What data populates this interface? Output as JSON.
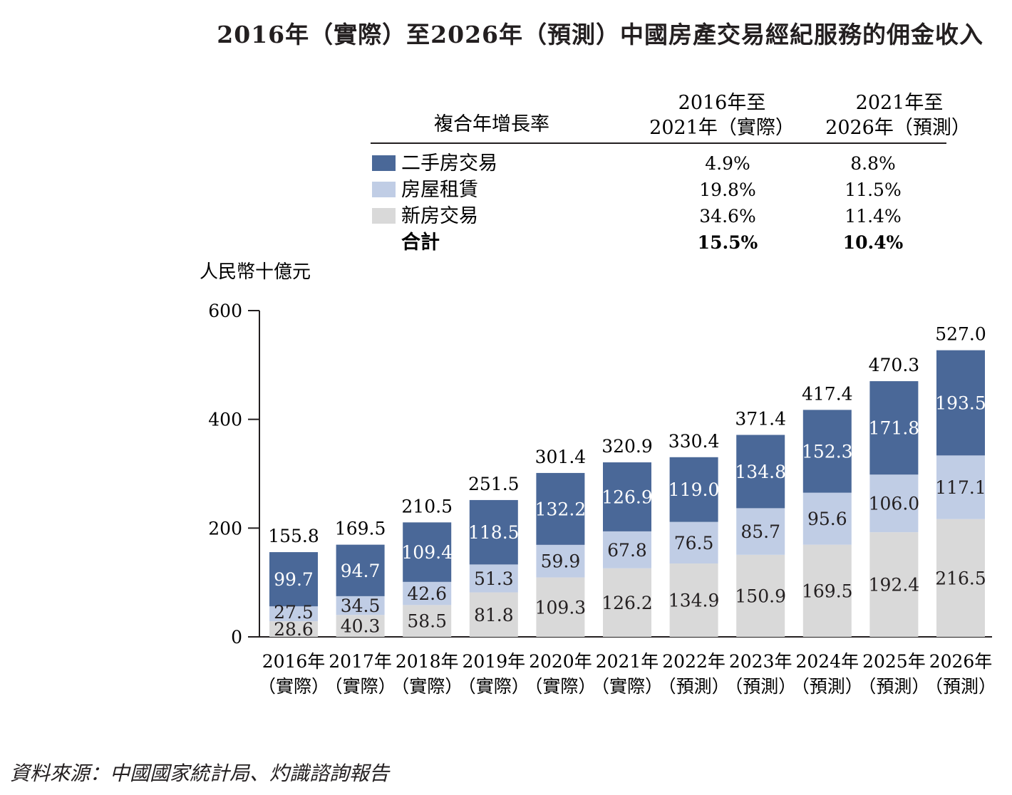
{
  "title": "2016年（實際）至2026年（預測）中國房產交易經紀服務的佣金收入",
  "source": "資料來源：中國國家統計局、灼識諮詢報告",
  "cagr_table": {
    "header_label": "複合年增長率",
    "col1": [
      "2016年至",
      "2021年（實際）"
    ],
    "col2": [
      "2021年至",
      "2026年（預測）"
    ],
    "rows": [
      {
        "name": "二手房交易",
        "swatch": "#4a6898",
        "v1": "4.9%",
        "v2": "8.8%"
      },
      {
        "name": "房屋租賃",
        "swatch": "#c0cde5",
        "v1": "19.8%",
        "v2": "11.5%"
      },
      {
        "name": "新房交易",
        "swatch": "#d9d9d9",
        "v1": "34.6%",
        "v2": "11.4%"
      },
      {
        "name": "合計",
        "swatch": "",
        "v1": "15.5%",
        "v2": "10.4%",
        "bold": true
      }
    ]
  },
  "chart_data": {
    "type": "bar",
    "stacked": true,
    "ylabel": "人民幣十億元",
    "ylim": [
      0,
      600
    ],
    "yticks": [
      0,
      200,
      400,
      600
    ],
    "categories": [
      [
        "2016年",
        "（實際）"
      ],
      [
        "2017年",
        "（實際）"
      ],
      [
        "2018年",
        "（實際）"
      ],
      [
        "2019年",
        "（實際）"
      ],
      [
        "2020年",
        "（實際）"
      ],
      [
        "2021年",
        "（實際）"
      ],
      [
        "2022年",
        "（預測）"
      ],
      [
        "2023年",
        "（預測）"
      ],
      [
        "2024年",
        "（預測）"
      ],
      [
        "2025年",
        "（預測）"
      ],
      [
        "2026年",
        "（預測）"
      ]
    ],
    "series": [
      {
        "name": "新房交易",
        "color": "#d9d9d9",
        "label_color": "#231f20",
        "values": [
          28.6,
          40.3,
          58.5,
          81.8,
          109.3,
          126.2,
          134.9,
          150.9,
          169.5,
          192.4,
          216.5
        ]
      },
      {
        "name": "房屋租賃",
        "color": "#c0cde5",
        "label_color": "#231f20",
        "values": [
          27.5,
          34.5,
          42.6,
          51.3,
          59.9,
          67.8,
          76.5,
          85.7,
          95.6,
          106.0,
          117.1
        ]
      },
      {
        "name": "二手房交易",
        "color": "#4a6898",
        "label_color": "#ffffff",
        "values": [
          99.7,
          94.7,
          109.4,
          118.5,
          132.2,
          126.9,
          119.0,
          134.8,
          152.3,
          171.8,
          193.5
        ]
      }
    ],
    "totals": [
      155.8,
      169.5,
      210.5,
      251.5,
      301.4,
      320.9,
      330.4,
      371.4,
      417.4,
      470.3,
      527.0
    ]
  }
}
